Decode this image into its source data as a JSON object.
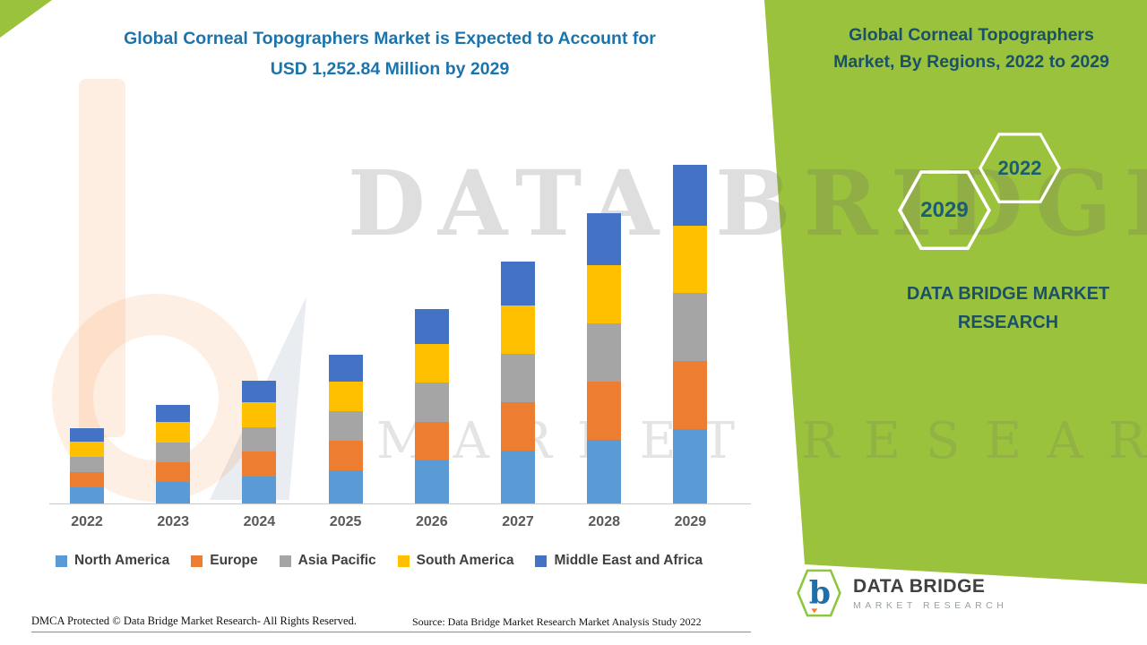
{
  "header": {
    "title_line1": "Global Corneal Topographers Market is Expected to Account for",
    "title_line2": "USD 1,252.84 Million by 2029",
    "title_color": "#1C74AC"
  },
  "panel": {
    "title_line1": "Global Corneal Topographers",
    "title_line2": "Market, By Regions, 2022 to 2029",
    "hex_left_year": "2029",
    "hex_right_year": "2022",
    "brand_line1": "DATA BRIDGE MARKET",
    "brand_line2": "RESEARCH",
    "bg_color": "#9BC23C",
    "text_color": "#1A5068",
    "hex_text_color": "#1A5E75"
  },
  "watermark": {
    "line1": "DATA BRIDGE",
    "line2": "MARKET RESEARCH"
  },
  "footer": {
    "dmca": "DMCA Protected © Data Bridge Market Research- All Rights Reserved.",
    "source": "Source: Data Bridge Market Research Market Analysis Study 2022"
  },
  "logo": {
    "name_line1": "DATA BRIDGE",
    "name_line2": "MARKET RESEARCH",
    "letter": "b"
  },
  "chart_data": {
    "type": "bar",
    "stacked": true,
    "title": "Global Corneal Topographers Market is Expected to Account for USD 1,252.84 Million by 2029",
    "xlabel": "",
    "ylabel": "",
    "value_unit": "USD Million",
    "grid": false,
    "legend_position": "bottom",
    "categories": [
      "2022",
      "2023",
      "2024",
      "2025",
      "2026",
      "2027",
      "2028",
      "2029"
    ],
    "series": [
      {
        "name": "North America",
        "color": "#5B9BD5",
        "values": [
          61,
          81,
          100,
          121,
          158,
          196,
          237,
          276
        ]
      },
      {
        "name": "Europe",
        "color": "#ED7D31",
        "values": [
          56,
          73,
          91,
          110,
          144,
          179,
          215,
          251
        ]
      },
      {
        "name": "Asia Pacific",
        "color": "#A5A5A5",
        "values": [
          56,
          73,
          91,
          110,
          144,
          179,
          215,
          251
        ]
      },
      {
        "name": "South America",
        "color": "#FFC000",
        "values": [
          56,
          73,
          91,
          110,
          144,
          179,
          215,
          250
        ]
      },
      {
        "name": "Middle East and Africa",
        "color": "#4472C4",
        "values": [
          50,
          66,
          82,
          99,
          129,
          161,
          193,
          225
        ]
      }
    ],
    "approx_totals": [
      279,
      366,
      455,
      550,
      719,
      894,
      1075,
      1252.84
    ],
    "ylim": [
      0,
      1300
    ]
  }
}
